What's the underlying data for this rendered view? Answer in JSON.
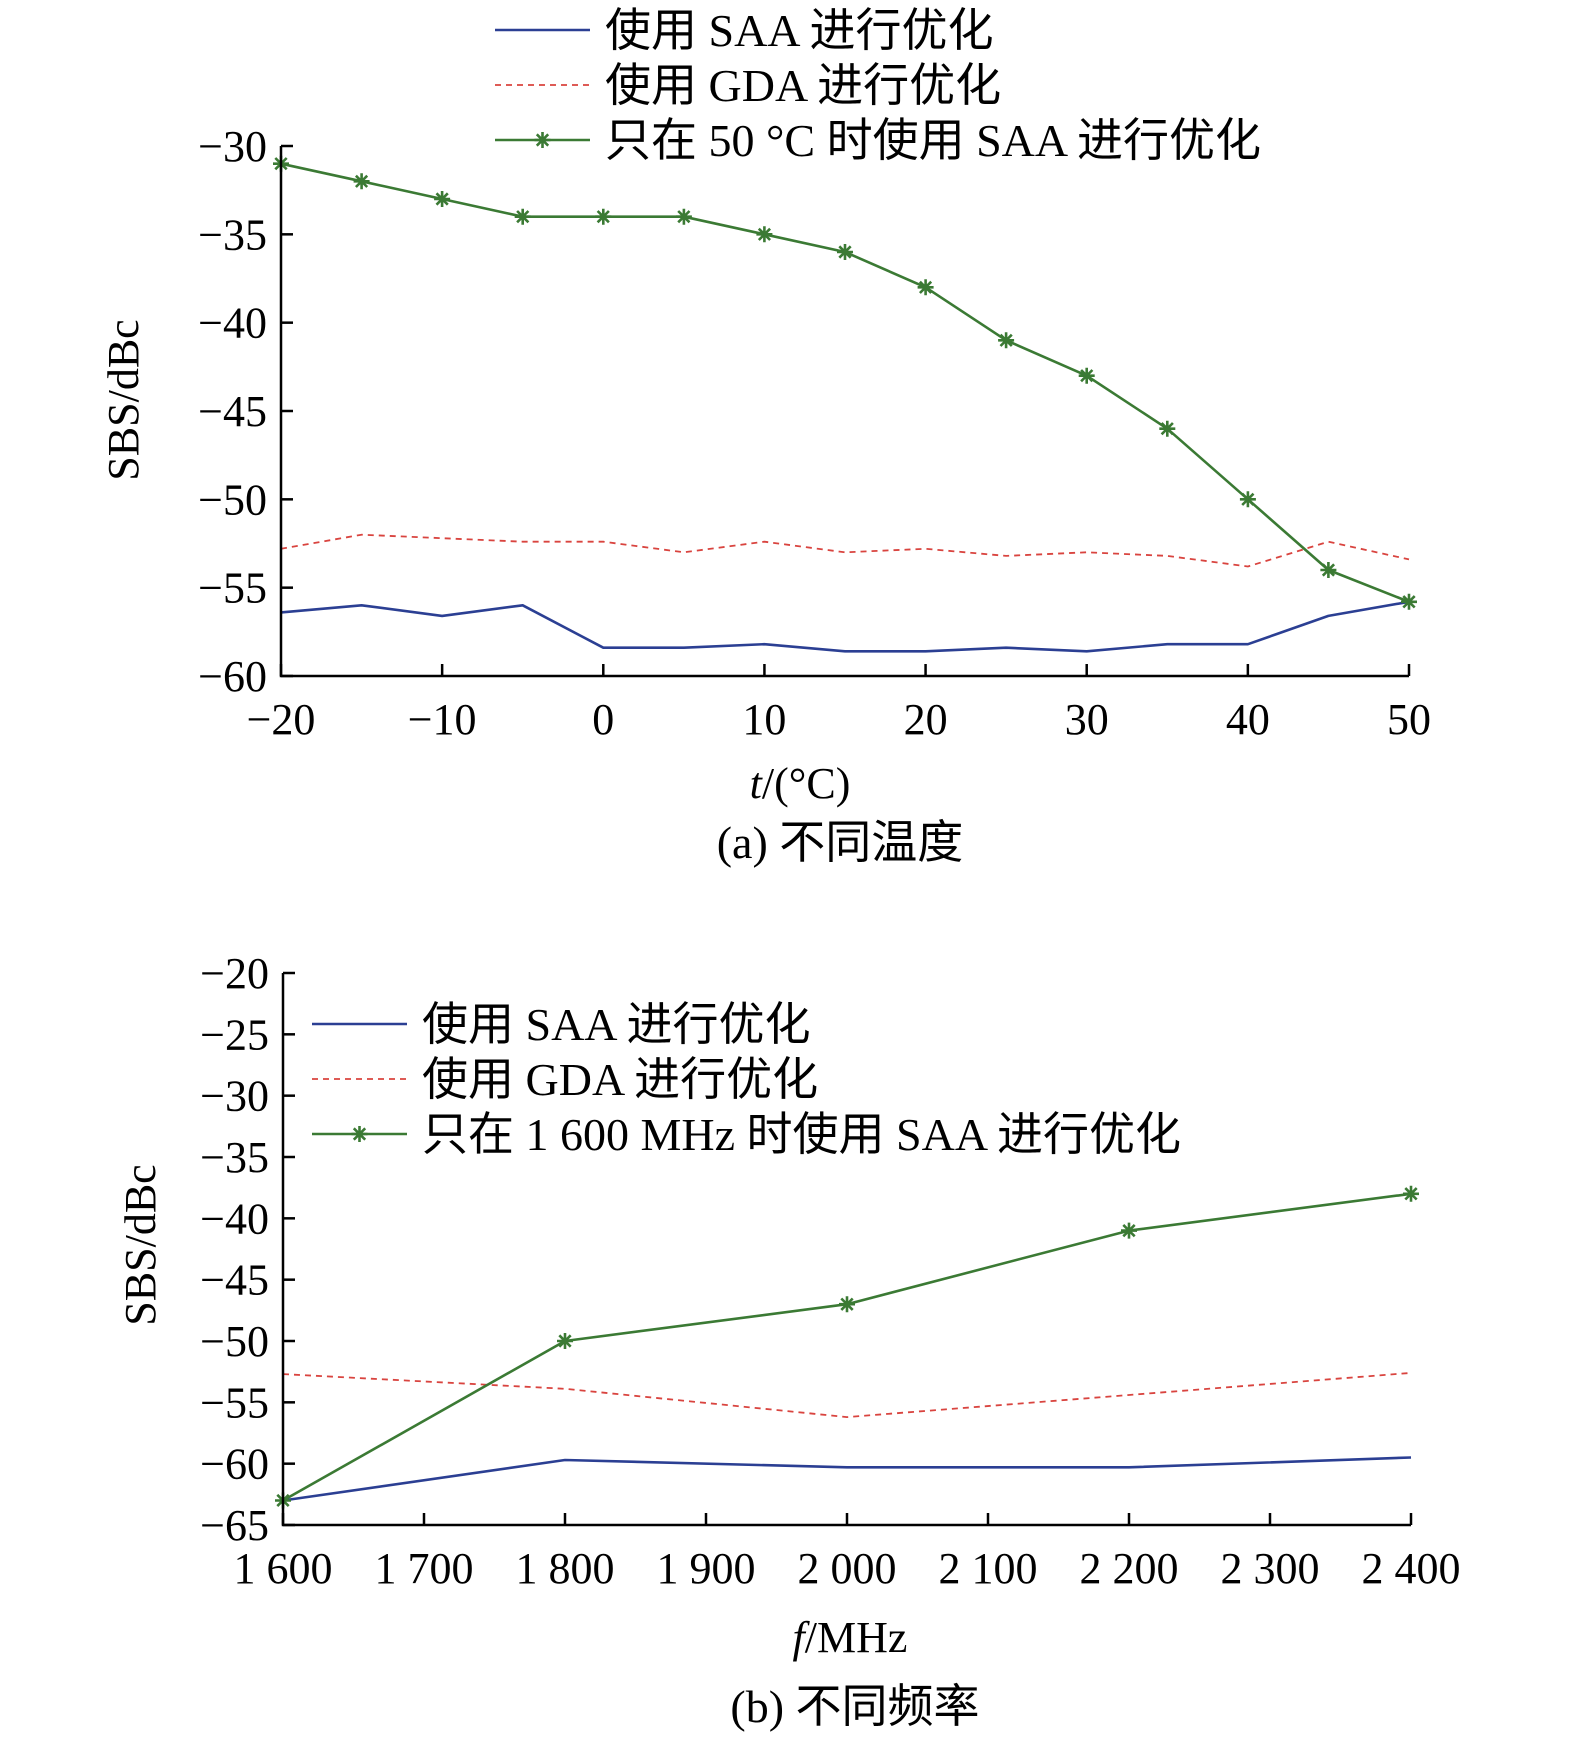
{
  "colors": {
    "saa": "#2b3f93",
    "gda": "#d9443f",
    "fixed": "#3b7a34",
    "axis": "#000000"
  },
  "chart_data": [
    {
      "type": "line",
      "caption": "(a) 不同温度",
      "xlabel_var": "t",
      "xlabel_unit": "/(°C)",
      "ylabel": "SBS/dBc",
      "xlim": [
        -20,
        50
      ],
      "ylim": [
        -60,
        -30
      ],
      "xticks": [
        -20,
        -10,
        0,
        10,
        20,
        30,
        40,
        50
      ],
      "xtick_labels": [
        "−20",
        "−10",
        "0",
        "10",
        "20",
        "30",
        "40",
        "50"
      ],
      "yticks": [
        -30,
        -35,
        -40,
        -45,
        -50,
        -55,
        -60
      ],
      "ytick_labels": [
        "−30",
        "−35",
        "−40",
        "−45",
        "−50",
        "−55",
        "−60"
      ],
      "legend_position": "top",
      "series": [
        {
          "name": "使用 SAA 进行优化",
          "style": "solid",
          "color": "saa",
          "x": [
            -20,
            -15,
            -10,
            -5,
            0,
            5,
            10,
            15,
            20,
            25,
            30,
            35,
            40,
            45,
            50
          ],
          "y": [
            -56.4,
            -56.0,
            -56.6,
            -56.0,
            -58.4,
            -58.4,
            -58.2,
            -58.6,
            -58.6,
            -58.4,
            -58.6,
            -58.2,
            -58.2,
            -56.6,
            -55.8
          ]
        },
        {
          "name": "使用 GDA 进行优化",
          "style": "dashed",
          "color": "gda",
          "x": [
            -20,
            -15,
            -10,
            -5,
            0,
            5,
            10,
            15,
            20,
            25,
            30,
            35,
            40,
            45,
            50
          ],
          "y": [
            -52.8,
            -52.0,
            -52.2,
            -52.4,
            -52.4,
            -53.0,
            -52.4,
            -53.0,
            -52.8,
            -53.2,
            -53.0,
            -53.2,
            -53.8,
            -52.4,
            -53.4
          ]
        },
        {
          "name": "只在 50 °C 时使用 SAA 进行优化",
          "style": "solid-star",
          "color": "fixed",
          "x": [
            -20,
            -15,
            -10,
            -5,
            0,
            5,
            10,
            15,
            20,
            25,
            30,
            35,
            40,
            45,
            50
          ],
          "y": [
            -31,
            -32,
            -33,
            -34,
            -34,
            -34,
            -35,
            -36,
            -38,
            -41,
            -43,
            -46,
            -50,
            -54,
            -55.8
          ]
        }
      ]
    },
    {
      "type": "line",
      "caption": "(b) 不同频率",
      "xlabel_var": "f",
      "xlabel_unit": "/MHz",
      "ylabel": "SBS/dBc",
      "xlim": [
        1600,
        2400
      ],
      "ylim": [
        -65,
        -20
      ],
      "xticks": [
        1600,
        1700,
        1800,
        1900,
        2000,
        2100,
        2200,
        2300,
        2400
      ],
      "xtick_labels": [
        "1 600",
        "1 700",
        "1 800",
        "1 900",
        "2 000",
        "2 100",
        "2 200",
        "2 300",
        "2 400"
      ],
      "yticks": [
        -20,
        -25,
        -30,
        -35,
        -40,
        -45,
        -50,
        -55,
        -60,
        -65
      ],
      "ytick_labels": [
        "−20",
        "−25",
        "−30",
        "−35",
        "−40",
        "−45",
        "−50",
        "−55",
        "−60",
        "−65"
      ],
      "legend_position": "top-left",
      "series": [
        {
          "name": "使用 SAA 进行优化",
          "style": "solid",
          "color": "saa",
          "x": [
            1600,
            1800,
            2000,
            2200,
            2400
          ],
          "y": [
            -63,
            -59.7,
            -60.3,
            -60.3,
            -59.5
          ]
        },
        {
          "name": "使用 GDA 进行优化",
          "style": "dashed",
          "color": "gda",
          "x": [
            1600,
            1800,
            2000,
            2200,
            2400
          ],
          "y": [
            -52.7,
            -53.9,
            -56.2,
            -54.4,
            -52.6
          ]
        },
        {
          "name": "只在 1 600 MHz 时使用 SAA 进行优化",
          "style": "solid-star",
          "color": "fixed",
          "x": [
            1600,
            1800,
            2000,
            2200,
            2400
          ],
          "y": [
            -63,
            -50,
            -47,
            -41,
            -38
          ]
        }
      ]
    }
  ]
}
